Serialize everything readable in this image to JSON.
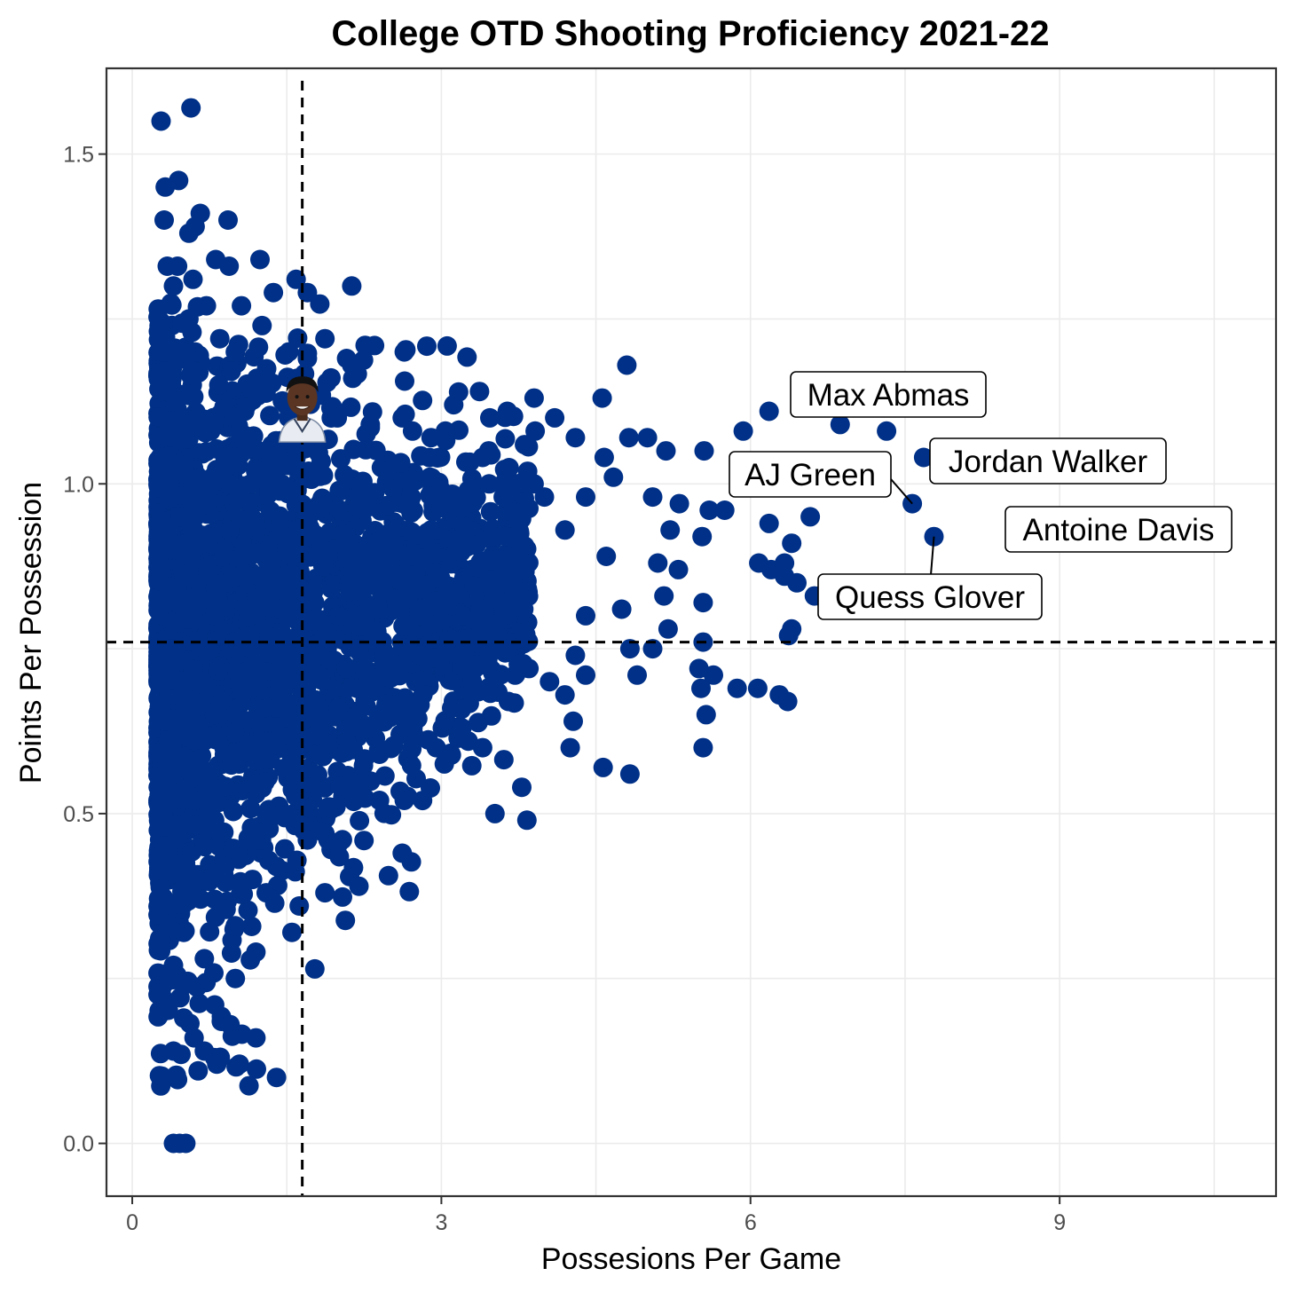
{
  "colors": {
    "point": "#003087",
    "grid": "#ebebeb",
    "panel_border": "#333333",
    "reference_line": "#000000",
    "label_border": "#000000",
    "label_fill": "#ffffff"
  },
  "chart_data": {
    "type": "scatter",
    "title": "College OTD Shooting Proficiency 2021-22",
    "xlabel": "Possesions Per Game",
    "ylabel": "Points Per Possession",
    "xlim": [
      -0.25,
      11.1
    ],
    "ylim": [
      -0.08,
      1.63
    ],
    "x_ticks": [
      0,
      3,
      6,
      9
    ],
    "y_ticks": [
      0.0,
      0.5,
      1.0,
      1.5
    ],
    "x_tick_labels": [
      "0",
      "3",
      "6",
      "9"
    ],
    "y_tick_labels": [
      "0.0",
      "0.5",
      "1.0",
      "1.5"
    ],
    "grid": true,
    "reference_lines": {
      "x": 1.65,
      "y": 0.76
    },
    "labeled_points": [
      {
        "name": "Max Abmas",
        "x": 7.32,
        "y": 1.08
      },
      {
        "name": "Jordan Walker",
        "x": 7.68,
        "y": 1.04
      },
      {
        "name": "AJ Green",
        "x": 7.57,
        "y": 0.97
      },
      {
        "name": "Antoine Davis",
        "x": 7.78,
        "y": 0.92
      },
      {
        "name": "Quess Glover",
        "x": 6.67,
        "y": 0.83
      }
    ],
    "player_image": {
      "x": 1.65,
      "y": 1.12,
      "icon": "player-headshot"
    },
    "generated_cloud": {
      "seed": 7,
      "count": 2600,
      "note_x_range": [
        0.25,
        4.0
      ],
      "note_y_range": [
        0.0,
        1.57
      ]
    },
    "points": [
      [
        0.28,
        1.55
      ],
      [
        0.57,
        1.57
      ],
      [
        0.32,
        1.45
      ],
      [
        0.45,
        1.46
      ],
      [
        0.31,
        1.4
      ],
      [
        0.66,
        1.41
      ],
      [
        0.93,
        1.4
      ],
      [
        0.55,
        1.38
      ],
      [
        0.61,
        1.39
      ],
      [
        0.34,
        1.33
      ],
      [
        0.44,
        1.33
      ],
      [
        0.81,
        1.34
      ],
      [
        0.94,
        1.33
      ],
      [
        1.24,
        1.34
      ],
      [
        0.4,
        1.3
      ],
      [
        0.59,
        1.31
      ],
      [
        0.55,
        1.25
      ],
      [
        0.72,
        1.27
      ],
      [
        1.06,
        1.27
      ],
      [
        1.37,
        1.29
      ],
      [
        1.59,
        1.31
      ],
      [
        1.7,
        1.29
      ],
      [
        2.13,
        1.3
      ],
      [
        0.58,
        1.23
      ],
      [
        0.85,
        1.22
      ],
      [
        1.26,
        1.24
      ],
      [
        1.87,
        1.22
      ],
      [
        2.26,
        1.21
      ],
      [
        0.3,
        1.2
      ],
      [
        0.61,
        1.2
      ],
      [
        1.0,
        1.2
      ],
      [
        1.52,
        1.2
      ],
      [
        1.7,
        1.19
      ],
      [
        2.08,
        1.19
      ],
      [
        2.64,
        1.2
      ],
      [
        0.38,
        1.15
      ],
      [
        0.84,
        1.15
      ],
      [
        1.21,
        1.16
      ],
      [
        1.6,
        1.16
      ],
      [
        2.13,
        1.18
      ],
      [
        2.14,
        1.16
      ],
      [
        0.31,
        1.1
      ],
      [
        1.01,
        1.1
      ],
      [
        1.49,
        1.12
      ],
      [
        1.99,
        1.1
      ],
      [
        2.62,
        1.1
      ],
      [
        3.12,
        1.12
      ],
      [
        3.37,
        1.14
      ],
      [
        3.47,
        1.1
      ],
      [
        3.9,
        1.13
      ],
      [
        4.1,
        1.1
      ],
      [
        4.56,
        1.13
      ],
      [
        4.8,
        1.18
      ],
      [
        3.64,
        1.11
      ],
      [
        2.31,
        1.09
      ],
      [
        2.72,
        1.08
      ],
      [
        2.9,
        1.07
      ],
      [
        3.04,
        1.08
      ],
      [
        3.46,
        1.05
      ],
      [
        3.91,
        1.08
      ],
      [
        4.3,
        1.07
      ],
      [
        4.58,
        1.04
      ],
      [
        4.67,
        1.01
      ],
      [
        4.82,
        1.07
      ],
      [
        5.0,
        1.07
      ],
      [
        5.18,
        1.05
      ],
      [
        5.55,
        1.05
      ],
      [
        5.93,
        1.08
      ],
      [
        6.18,
        1.11
      ],
      [
        6.87,
        1.09
      ],
      [
        3.4,
        1.04
      ],
      [
        3.9,
        1.0
      ],
      [
        2.5,
        1.02
      ],
      [
        2.89,
        1.01
      ],
      [
        0.35,
        1.0
      ],
      [
        0.55,
        1.0
      ],
      [
        0.75,
        1.0
      ],
      [
        0.95,
        1.0
      ],
      [
        1.15,
        1.0
      ],
      [
        1.3,
        1.0
      ],
      [
        1.45,
        1.0
      ],
      [
        1.6,
        0.99
      ],
      [
        2.01,
        0.99
      ],
      [
        3.0,
        0.99
      ],
      [
        3.6,
        0.98
      ],
      [
        4.0,
        0.98
      ],
      [
        4.4,
        0.98
      ],
      [
        5.05,
        0.98
      ],
      [
        5.31,
        0.97
      ],
      [
        5.6,
        0.96
      ],
      [
        5.75,
        0.96
      ],
      [
        6.58,
        0.95
      ],
      [
        6.18,
        0.94
      ],
      [
        6.4,
        0.91
      ],
      [
        5.53,
        0.92
      ],
      [
        5.22,
        0.93
      ],
      [
        4.2,
        0.93
      ],
      [
        3.5,
        0.92
      ],
      [
        2.9,
        0.93
      ],
      [
        2.3,
        0.91
      ],
      [
        1.7,
        0.92
      ],
      [
        1.2,
        0.93
      ],
      [
        0.6,
        0.93
      ],
      [
        0.25,
        0.9
      ],
      [
        0.9,
        0.9
      ],
      [
        1.9,
        0.89
      ],
      [
        2.7,
        0.89
      ],
      [
        3.7,
        0.88
      ],
      [
        4.6,
        0.89
      ],
      [
        5.1,
        0.88
      ],
      [
        5.3,
        0.87
      ],
      [
        6.08,
        0.88
      ],
      [
        6.2,
        0.87
      ],
      [
        6.33,
        0.88
      ],
      [
        6.45,
        0.85
      ],
      [
        6.62,
        0.83
      ],
      [
        6.33,
        0.86
      ],
      [
        5.54,
        0.82
      ],
      [
        5.16,
        0.83
      ],
      [
        4.75,
        0.81
      ],
      [
        4.4,
        0.8
      ],
      [
        3.8,
        0.81
      ],
      [
        3.2,
        0.8
      ],
      [
        2.6,
        0.81
      ],
      [
        2.0,
        0.8
      ],
      [
        1.4,
        0.81
      ],
      [
        0.8,
        0.8
      ],
      [
        0.3,
        0.8
      ],
      [
        5.2,
        0.78
      ],
      [
        5.54,
        0.76
      ],
      [
        6.4,
        0.78
      ],
      [
        6.37,
        0.77
      ],
      [
        4.83,
        0.75
      ],
      [
        5.05,
        0.75
      ],
      [
        4.3,
        0.74
      ],
      [
        3.6,
        0.75
      ],
      [
        2.8,
        0.74
      ],
      [
        2.2,
        0.75
      ],
      [
        1.6,
        0.73
      ],
      [
        1.0,
        0.74
      ],
      [
        0.4,
        0.75
      ],
      [
        5.5,
        0.72
      ],
      [
        5.64,
        0.71
      ],
      [
        5.87,
        0.69
      ],
      [
        6.07,
        0.69
      ],
      [
        6.28,
        0.68
      ],
      [
        6.36,
        0.67
      ],
      [
        5.52,
        0.69
      ],
      [
        4.9,
        0.71
      ],
      [
        4.4,
        0.71
      ],
      [
        4.05,
        0.7
      ],
      [
        3.85,
        0.72
      ],
      [
        3.3,
        0.7
      ],
      [
        2.75,
        0.7
      ],
      [
        2.2,
        0.69
      ],
      [
        1.7,
        0.7
      ],
      [
        1.1,
        0.69
      ],
      [
        0.55,
        0.7
      ],
      [
        4.2,
        0.68
      ],
      [
        3.65,
        0.67
      ],
      [
        3.1,
        0.66
      ],
      [
        2.6,
        0.66
      ],
      [
        2.0,
        0.66
      ],
      [
        1.4,
        0.66
      ],
      [
        0.8,
        0.65
      ],
      [
        0.3,
        0.64
      ],
      [
        5.57,
        0.65
      ],
      [
        4.28,
        0.64
      ],
      [
        3.2,
        0.63
      ],
      [
        2.6,
        0.62
      ],
      [
        1.9,
        0.62
      ],
      [
        1.3,
        0.61
      ],
      [
        0.7,
        0.61
      ],
      [
        5.54,
        0.6
      ],
      [
        4.25,
        0.6
      ],
      [
        3.4,
        0.6
      ],
      [
        2.95,
        0.6
      ],
      [
        2.4,
        0.59
      ],
      [
        1.8,
        0.59
      ],
      [
        1.2,
        0.58
      ],
      [
        0.6,
        0.58
      ],
      [
        4.57,
        0.57
      ],
      [
        4.83,
        0.56
      ],
      [
        3.78,
        0.54
      ],
      [
        2.2,
        0.54
      ],
      [
        1.7,
        0.54
      ],
      [
        1.2,
        0.53
      ],
      [
        0.7,
        0.52
      ],
      [
        0.3,
        0.5
      ],
      [
        3.52,
        0.5
      ],
      [
        3.83,
        0.49
      ],
      [
        2.64,
        0.52
      ],
      [
        2.4,
        0.52
      ],
      [
        1.9,
        0.51
      ],
      [
        1.3,
        0.5
      ],
      [
        0.8,
        0.49
      ],
      [
        0.3,
        0.48
      ],
      [
        2.62,
        0.44
      ],
      [
        1.7,
        0.46
      ],
      [
        1.2,
        0.46
      ],
      [
        0.7,
        0.45
      ],
      [
        1.9,
        0.46
      ],
      [
        1.4,
        0.42
      ],
      [
        0.9,
        0.42
      ],
      [
        0.4,
        0.41
      ],
      [
        2.2,
        0.39
      ],
      [
        1.87,
        0.38
      ],
      [
        1.3,
        0.38
      ],
      [
        0.8,
        0.37
      ],
      [
        0.3,
        0.36
      ],
      [
        1.62,
        0.36
      ],
      [
        1.55,
        0.32
      ],
      [
        1.0,
        0.33
      ],
      [
        0.5,
        0.32
      ],
      [
        1.2,
        0.29
      ],
      [
        0.7,
        0.28
      ],
      [
        0.4,
        0.27
      ],
      [
        1.0,
        0.25
      ],
      [
        0.5,
        0.24
      ],
      [
        0.8,
        0.21
      ],
      [
        0.3,
        0.2
      ],
      [
        0.5,
        0.19
      ],
      [
        0.95,
        0.18
      ],
      [
        1.2,
        0.16
      ],
      [
        0.6,
        0.16
      ],
      [
        0.7,
        0.14
      ],
      [
        0.4,
        0.14
      ],
      [
        0.8,
        0.13
      ],
      [
        0.64,
        0.11
      ],
      [
        1.04,
        0.12
      ],
      [
        1.4,
        0.1
      ],
      [
        0.4,
        0.0
      ],
      [
        0.46,
        0.0
      ],
      [
        0.52,
        0.0
      ]
    ]
  }
}
